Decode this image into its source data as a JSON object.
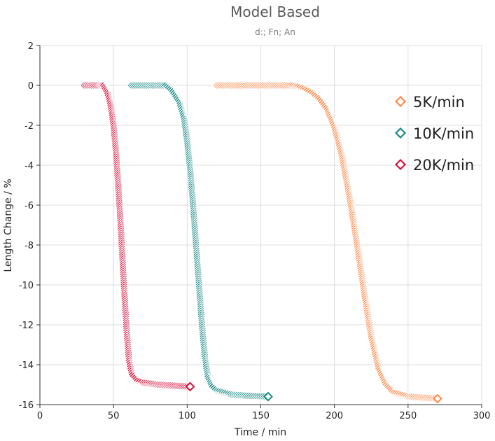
{
  "chart_data": {
    "type": "scatter",
    "title": "Model Based",
    "subtitle": "d:; Fn; An",
    "xlabel": "Time / min",
    "ylabel": "Length Change / %",
    "xlim": [
      0,
      300
    ],
    "ylim": [
      -16,
      2
    ],
    "xticks": [
      0,
      50,
      100,
      150,
      200,
      250,
      300
    ],
    "yticks": [
      2,
      0,
      -2,
      -4,
      -6,
      -8,
      -10,
      -12,
      -14,
      -16
    ],
    "grid": true,
    "legend_position": "top-right",
    "marker": "diamond",
    "series": [
      {
        "name": "5K/min",
        "color": "#ff8a4c",
        "points": [
          [
            120,
            0
          ],
          [
            130,
            0
          ],
          [
            140,
            0
          ],
          [
            150,
            0
          ],
          [
            160,
            0
          ],
          [
            170,
            0
          ],
          [
            175,
            -0.05
          ],
          [
            180,
            -0.2
          ],
          [
            185,
            -0.4
          ],
          [
            190,
            -0.7
          ],
          [
            195,
            -1.2
          ],
          [
            200,
            -2.1
          ],
          [
            205,
            -3.5
          ],
          [
            210,
            -5.5
          ],
          [
            215,
            -7.8
          ],
          [
            220,
            -10.3
          ],
          [
            225,
            -12.6
          ],
          [
            230,
            -14.2
          ],
          [
            235,
            -15.0
          ],
          [
            240,
            -15.4
          ],
          [
            250,
            -15.6
          ],
          [
            260,
            -15.65
          ],
          [
            270,
            -15.7
          ]
        ]
      },
      {
        "name": "10K/min",
        "color": "#1b8a86",
        "points": [
          [
            62,
            0
          ],
          [
            70,
            0
          ],
          [
            80,
            0
          ],
          [
            85,
            0
          ],
          [
            90,
            -0.3
          ],
          [
            95,
            -0.9
          ],
          [
            98,
            -1.7
          ],
          [
            100,
            -2.8
          ],
          [
            102,
            -4.2
          ],
          [
            104,
            -6.0
          ],
          [
            106,
            -8.0
          ],
          [
            108,
            -10.0
          ],
          [
            110,
            -12.0
          ],
          [
            112,
            -13.6
          ],
          [
            114,
            -14.6
          ],
          [
            117,
            -15.1
          ],
          [
            120,
            -15.3
          ],
          [
            130,
            -15.5
          ],
          [
            140,
            -15.55
          ],
          [
            155,
            -15.6
          ]
        ]
      },
      {
        "name": "20K/min",
        "color": "#d3143e",
        "points": [
          [
            30,
            0
          ],
          [
            35,
            0
          ],
          [
            40,
            0
          ],
          [
            43,
            0
          ],
          [
            46,
            -0.4
          ],
          [
            48,
            -1.0
          ],
          [
            50,
            -2.0
          ],
          [
            51.5,
            -3.2
          ],
          [
            53,
            -4.8
          ],
          [
            54.5,
            -6.6
          ],
          [
            56,
            -8.6
          ],
          [
            57.5,
            -10.6
          ],
          [
            59,
            -12.4
          ],
          [
            60.5,
            -13.8
          ],
          [
            62.5,
            -14.5
          ],
          [
            66,
            -14.8
          ],
          [
            70,
            -14.9
          ],
          [
            80,
            -15.0
          ],
          [
            90,
            -15.05
          ],
          [
            102,
            -15.1
          ]
        ]
      }
    ]
  }
}
